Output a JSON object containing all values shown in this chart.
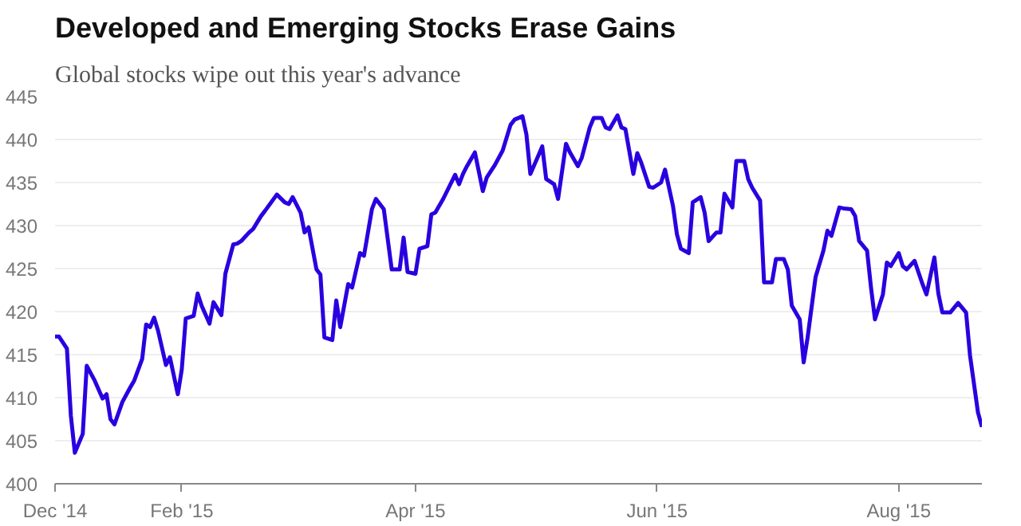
{
  "chart_data": {
    "type": "line",
    "title": "Developed and Emerging Stocks Erase Gains",
    "subtitle": "Global stocks wipe out this year's advance",
    "x": [
      "2014-12-31",
      "2015-01-01",
      "2015-01-03",
      "2015-01-04",
      "2015-01-05",
      "2015-01-07",
      "2015-01-08",
      "2015-01-10",
      "2015-01-12",
      "2015-01-13",
      "2015-01-14",
      "2015-01-15",
      "2015-01-17",
      "2015-01-19",
      "2015-01-20",
      "2015-01-22",
      "2015-01-23",
      "2015-01-24",
      "2015-01-25",
      "2015-01-26",
      "2015-01-28",
      "2015-01-29",
      "2015-01-31",
      "2015-02-01",
      "2015-02-02",
      "2015-02-04",
      "2015-02-05",
      "2015-02-06",
      "2015-02-08",
      "2015-02-09",
      "2015-02-11",
      "2015-02-12",
      "2015-02-14",
      "2015-02-15",
      "2015-02-16",
      "2015-02-18",
      "2015-02-19",
      "2015-02-21",
      "2015-02-22",
      "2015-02-25",
      "2015-02-27",
      "2015-02-28",
      "2015-03-01",
      "2015-03-03",
      "2015-03-04",
      "2015-03-05",
      "2015-03-07",
      "2015-03-08",
      "2015-03-09",
      "2015-03-11",
      "2015-03-12",
      "2015-03-13",
      "2015-03-15",
      "2015-03-16",
      "2015-03-18",
      "2015-03-19",
      "2015-03-21",
      "2015-03-22",
      "2015-03-24",
      "2015-03-26",
      "2015-03-28",
      "2015-03-29",
      "2015-03-30",
      "2015-04-01",
      "2015-04-02",
      "2015-04-04",
      "2015-04-05",
      "2015-04-06",
      "2015-04-08",
      "2015-04-11",
      "2015-04-12",
      "2015-04-13",
      "2015-04-14",
      "2015-04-16",
      "2015-04-18",
      "2015-04-19",
      "2015-04-21",
      "2015-04-23",
      "2015-04-25",
      "2015-04-26",
      "2015-04-28",
      "2015-04-29",
      "2015-04-30",
      "2015-05-02",
      "2015-05-03",
      "2015-05-04",
      "2015-05-06",
      "2015-05-07",
      "2015-05-09",
      "2015-05-10",
      "2015-05-12",
      "2015-05-13",
      "2015-05-15",
      "2015-05-16",
      "2015-05-18",
      "2015-05-19",
      "2015-05-20",
      "2015-05-22",
      "2015-05-23",
      "2015-05-24",
      "2015-05-26",
      "2015-05-27",
      "2015-05-28",
      "2015-05-30",
      "2015-05-31",
      "2015-06-02",
      "2015-06-03",
      "2015-06-05",
      "2015-06-06",
      "2015-06-07",
      "2015-06-09",
      "2015-06-10",
      "2015-06-12",
      "2015-06-13",
      "2015-06-14",
      "2015-06-16",
      "2015-06-17",
      "2015-06-18",
      "2015-06-20",
      "2015-06-21",
      "2015-06-23",
      "2015-06-24",
      "2015-06-25",
      "2015-06-27",
      "2015-06-28",
      "2015-06-30",
      "2015-07-01",
      "2015-07-03",
      "2015-07-04",
      "2015-07-05",
      "2015-07-07",
      "2015-07-08",
      "2015-07-09",
      "2015-07-11",
      "2015-07-13",
      "2015-07-14",
      "2015-07-15",
      "2015-07-17",
      "2015-07-18",
      "2015-07-20",
      "2015-07-21",
      "2015-07-22",
      "2015-07-24",
      "2015-07-25",
      "2015-07-26",
      "2015-07-28",
      "2015-07-29",
      "2015-07-30",
      "2015-08-01",
      "2015-08-02",
      "2015-08-03",
      "2015-08-05",
      "2015-08-07",
      "2015-08-08",
      "2015-08-10",
      "2015-08-11",
      "2015-08-12",
      "2015-08-14",
      "2015-08-16",
      "2015-08-18",
      "2015-08-19",
      "2015-08-21",
      "2015-08-22"
    ],
    "series": [
      {
        "color": "#2a00e0",
        "values": [
          417.1,
          417.1,
          415.7,
          407.9,
          403.6,
          405.8,
          413.7,
          412,
          409.9,
          410.4,
          407.5,
          406.9,
          409.5,
          411.2,
          412,
          414.5,
          418.5,
          418.2,
          419.3,
          417.8,
          413.8,
          414.7,
          410.4,
          413.3,
          419.2,
          419.5,
          422.1,
          420.7,
          418.6,
          421.1,
          419.6,
          424.4,
          427.8,
          427.9,
          428.2,
          429.2,
          429.6,
          431.1,
          431.7,
          433.6,
          432.7,
          432.5,
          433.3,
          431.5,
          429.2,
          429.8,
          424.9,
          424.3,
          417,
          416.7,
          421.3,
          418.2,
          423.2,
          422.8,
          426.8,
          426.5,
          431.9,
          433.1,
          431.9,
          424.9,
          424.9,
          428.6,
          424.6,
          424.4,
          427.3,
          427.6,
          431.3,
          431.5,
          433.1,
          435.9,
          434.8,
          436,
          436.9,
          438.5,
          434,
          435.6,
          437,
          438.7,
          441.7,
          442.3,
          442.7,
          440.6,
          436,
          438.1,
          439.2,
          435.4,
          434.8,
          433.1,
          439.5,
          438.5,
          436.9,
          437.9,
          441.4,
          442.5,
          442.5,
          441.4,
          441.2,
          442.8,
          441.4,
          441.2,
          436,
          438.4,
          437.3,
          434.5,
          434.4,
          435,
          436.5,
          432.3,
          429,
          427.3,
          426.8,
          432.7,
          433.3,
          431.5,
          428.2,
          429.2,
          429.2,
          433.7,
          432.1,
          437.5,
          437.5,
          435.4,
          434.4,
          432.9,
          423.4,
          423.4,
          426.1,
          426.1,
          424.9,
          420.7,
          419.1,
          414.1,
          417,
          424,
          427.1,
          429.4,
          428.8,
          432.1,
          432,
          431.9,
          431.1,
          428.2,
          427.1,
          422.8,
          419.1,
          422,
          425.7,
          425.3,
          426.8,
          425.3,
          424.9,
          425.9,
          423.2,
          422,
          426.3,
          422.1,
          419.9,
          419.9,
          421,
          419.9,
          414.9,
          408.3,
          406.6
        ]
      }
    ],
    "xlim": [
      "2014-12-31",
      "2015-08-22"
    ],
    "xticks": [
      {
        "value": "2014-12-31",
        "label": "Dec '14"
      },
      {
        "value": "2015-02-01",
        "label": "Feb '15"
      },
      {
        "value": "2015-04-01",
        "label": "Apr '15"
      },
      {
        "value": "2015-06-01",
        "label": "Jun '15"
      },
      {
        "value": "2015-08-01",
        "label": "Aug '15"
      }
    ],
    "ylim": [
      400,
      445
    ],
    "yticks": [
      400,
      405,
      410,
      415,
      420,
      425,
      430,
      435,
      440,
      445
    ],
    "grid": "y",
    "line_style": "solid"
  }
}
